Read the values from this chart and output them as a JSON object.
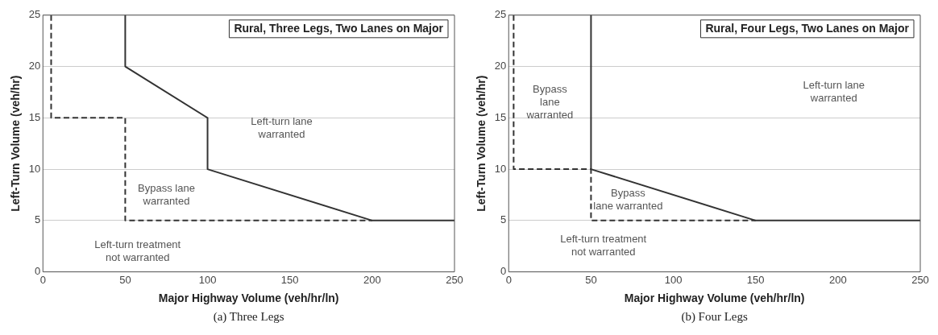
{
  "chart_data": [
    {
      "type": "line",
      "title": "Rural, Three Legs, Two Lanes on Major",
      "xlabel": "Major Highway Volume (veh/hr/ln)",
      "ylabel": "Left-Turn Volume (veh/hr)",
      "xlim": [
        0,
        250
      ],
      "ylim": [
        0,
        25
      ],
      "xticks": [
        0,
        50,
        100,
        150,
        200,
        250
      ],
      "yticks": [
        0,
        5,
        10,
        15,
        20,
        25
      ],
      "grid": "y",
      "legend": false,
      "marker": "none",
      "series": [
        {
          "color": "#333333",
          "line_style": "solid",
          "x": [
            50,
            50,
            100,
            100,
            200,
            250
          ],
          "values": [
            25,
            20,
            15,
            10,
            5,
            5
          ]
        },
        {
          "color": "#333333",
          "line_style": "dashed",
          "x": [
            5,
            5,
            50,
            50,
            200
          ],
          "values": [
            25,
            15,
            15,
            5,
            5
          ]
        }
      ],
      "annotations": [
        "Left-turn lane\nwarranted",
        "Bypass lane\nwarranted",
        "Left-turn treatment\nnot warranted",
        "(a) Three Legs"
      ]
    },
    {
      "type": "line",
      "title": "Rural, Four Legs, Two Lanes on Major",
      "xlabel": "Major Highway Volume (veh/hr/ln)",
      "ylabel": "Left-Turn Volume (veh/hr)",
      "xlim": [
        0,
        250
      ],
      "ylim": [
        0,
        25
      ],
      "xticks": [
        0,
        50,
        100,
        150,
        200,
        250
      ],
      "yticks": [
        0,
        5,
        10,
        15,
        20,
        25
      ],
      "grid": "y",
      "legend": false,
      "marker": "none",
      "series": [
        {
          "color": "#333333",
          "line_style": "solid",
          "x": [
            50,
            50,
            150,
            250
          ],
          "values": [
            25,
            10,
            5,
            5
          ]
        },
        {
          "color": "#333333",
          "line_style": "dashed",
          "x": [
            3,
            3,
            50,
            50,
            150
          ],
          "values": [
            25,
            10,
            10,
            5,
            5
          ]
        }
      ],
      "annotations": [
        "Bypass\nlane\nwarranted",
        "Left-turn lane\nwarranted",
        "Bypass\nlane warranted",
        "Left-turn treatment\nnot warranted",
        "(b) Four Legs"
      ]
    }
  ]
}
